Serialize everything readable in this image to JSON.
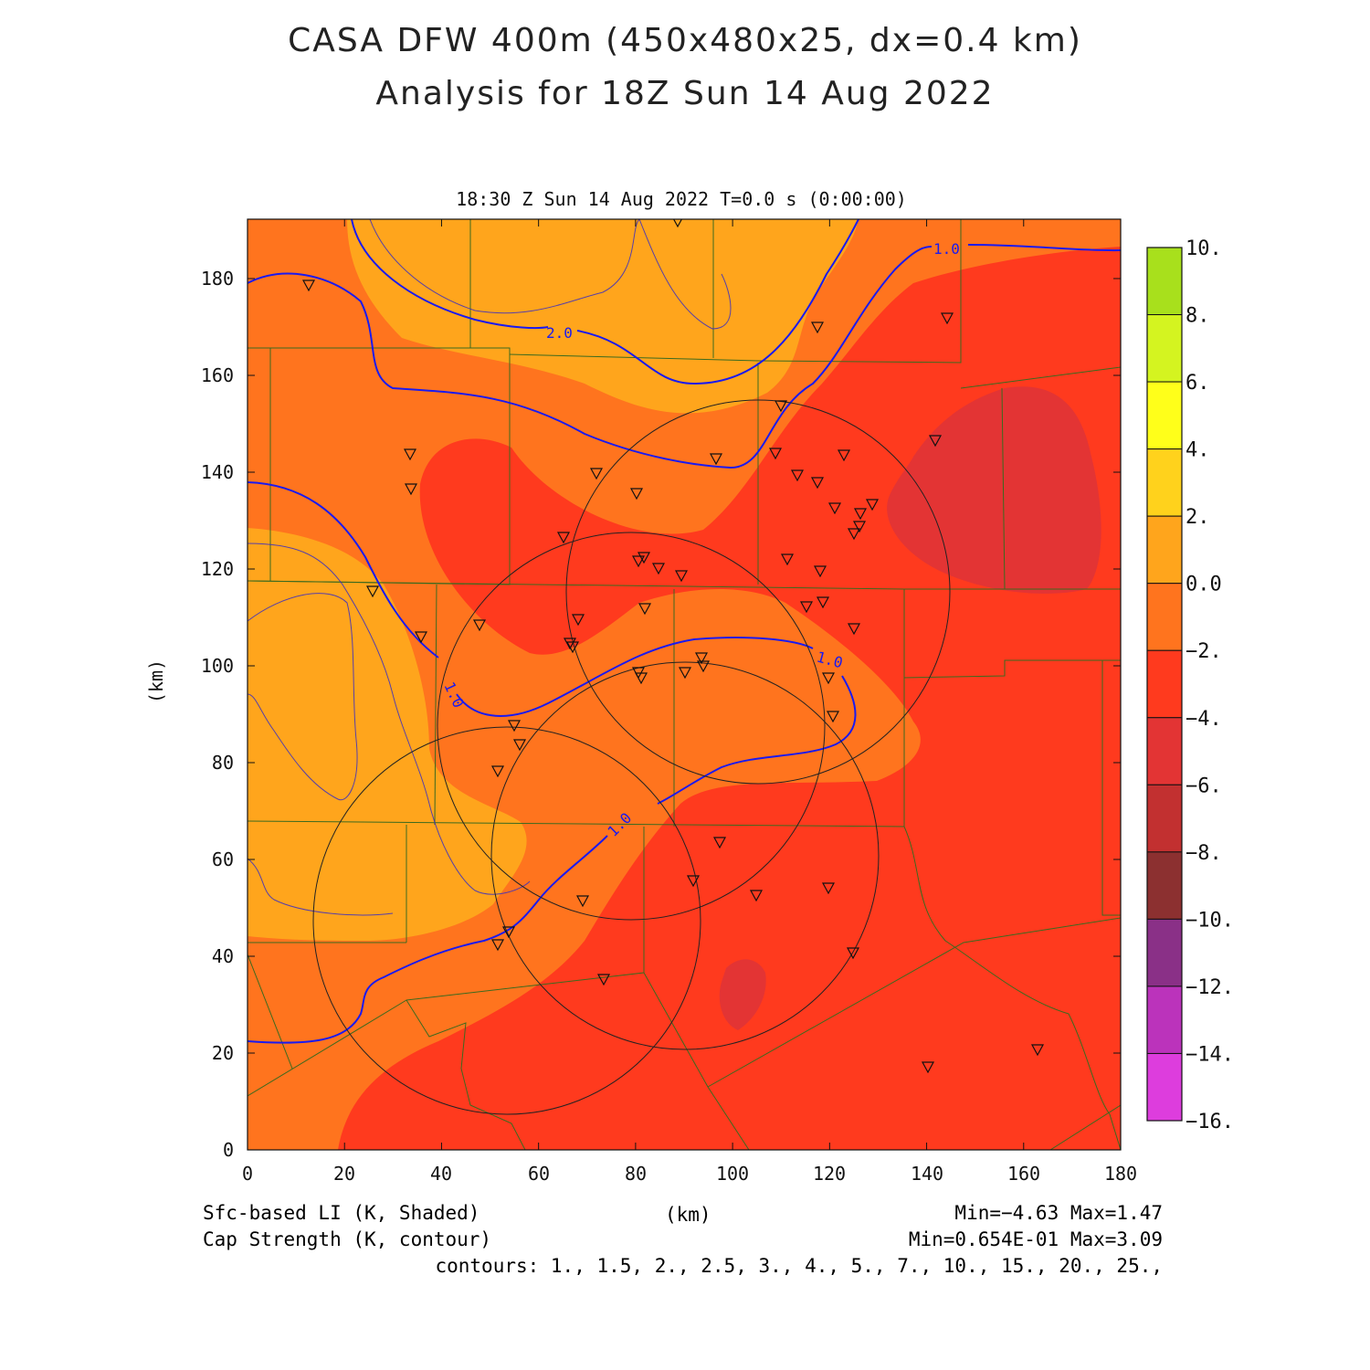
{
  "header": {
    "title_line1": "CASA DFW 400m (450x480x25, dx=0.4 km)",
    "title_line2": "Analysis for 18Z Sun 14 Aug 2022"
  },
  "plot": {
    "time_label": "18:30 Z Sun 14 Aug 2022   T=0.0 s (0:00:00)",
    "x_unit": "(km)",
    "y_unit": "(km)",
    "x_ticks": [
      "0",
      "20",
      "40",
      "60",
      "80",
      "100",
      "120",
      "140",
      "160",
      "180"
    ],
    "y_ticks": [
      "0",
      "20",
      "40",
      "60",
      "80",
      "100",
      "120",
      "140",
      "160",
      "180"
    ],
    "x_range": [
      0,
      180
    ],
    "y_range": [
      0,
      192
    ],
    "contour_labels": [
      "2.0",
      "1.0",
      "1.0",
      "1.0",
      "1.0"
    ]
  },
  "colorbar": {
    "labels": [
      "10.",
      "8.",
      "6.",
      "4.",
      "2.",
      "0.0",
      "−2.",
      "−4.",
      "−6.",
      "−8.",
      "−10.",
      "−12.",
      "−14.",
      "−16."
    ],
    "colors": [
      "#a8e01c",
      "#d4f420",
      "#ffff1a",
      "#ffd21c",
      "#ffa51c",
      "#ff741e",
      "#ff3a1e",
      "#e33434",
      "#c23030",
      "#8c3030",
      "#8a3087",
      "#bb33bb",
      "#dd3ddd"
    ]
  },
  "colors": {
    "shade_high": "#ffa51c",
    "shade_mid": "#ff741e",
    "shade_low": "#ff3a1e",
    "shade_lowest": "#e33434",
    "contour": "#1a1af0",
    "county_lines": "#3b6a1e",
    "radar_rings": "#222222"
  },
  "footer": {
    "left_line1": "Sfc-based LI (K, Shaded)",
    "left_line2": "Cap Strength (K, contour)",
    "center": "(km)",
    "right_line1": "Min=−4.63 Max=1.47",
    "right_line2": "Min=0.654E-01 Max=3.09",
    "contours": "contours: 1., 1.5, 2., 2.5, 3., 4., 5., 7., 10., 15., 20., 25.,"
  }
}
